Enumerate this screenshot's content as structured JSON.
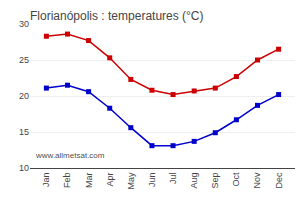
{
  "chart_data": {
    "type": "line",
    "title": "Florianópolis : temperatures (°C)",
    "categories": [
      "Jan",
      "Feb",
      "Mar",
      "Apr",
      "May",
      "Jun",
      "Jul",
      "Aug",
      "Sep",
      "Oct",
      "Nov",
      "Dec"
    ],
    "series": [
      {
        "color": "#cc0000",
        "values": [
          28.3,
          28.6,
          27.7,
          25.3,
          22.3,
          20.8,
          20.2,
          20.7,
          21.1,
          22.7,
          25.0,
          26.5
        ]
      },
      {
        "color": "#0000cc",
        "values": [
          21.1,
          21.5,
          20.6,
          18.3,
          15.6,
          13.1,
          13.1,
          13.7,
          14.9,
          16.7,
          18.7,
          20.2
        ]
      }
    ],
    "marker": "square",
    "line_style": "solid",
    "ylim": [
      10,
      30
    ],
    "yticks": [
      10,
      15,
      20,
      25,
      30
    ],
    "grid": true,
    "annotations": [
      "www.allmetsat.com"
    ]
  }
}
